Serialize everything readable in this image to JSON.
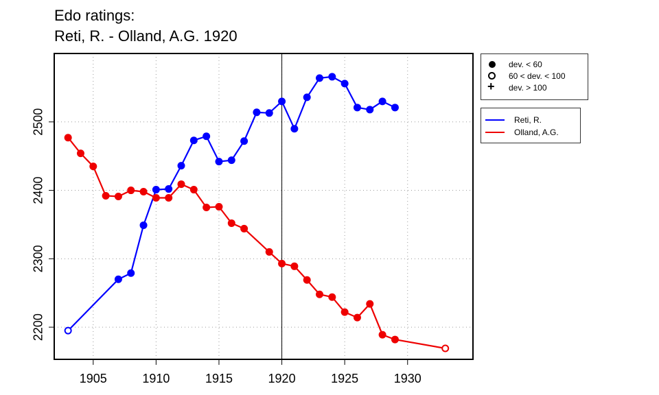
{
  "chart_data": {
    "type": "line",
    "title": "Edo ratings:",
    "subtitle": "Reti, R. - Olland, A.G. 1920",
    "xlabel": "",
    "ylabel": "",
    "xlim": [
      1901.9,
      1935.2
    ],
    "ylim": [
      2153,
      2600
    ],
    "x_ticks": [
      1905,
      1910,
      1915,
      1920,
      1925,
      1930
    ],
    "y_ticks": [
      2200,
      2300,
      2400,
      2500
    ],
    "grid": "dotted",
    "reference_line_x": 1920,
    "marker_legend": [
      {
        "symbol": "solid-circle",
        "label": "dev. < 60"
      },
      {
        "symbol": "open-circle",
        "label": "60 < dev. < 100"
      },
      {
        "symbol": "plus",
        "label": "dev. > 100"
      }
    ],
    "series": [
      {
        "name": "Reti, R.",
        "color": "#0000ff",
        "points": [
          {
            "x": 1903,
            "y": 2195,
            "marker": "open-circle"
          },
          {
            "x": 1907,
            "y": 2270,
            "marker": "solid-circle"
          },
          {
            "x": 1908,
            "y": 2279,
            "marker": "solid-circle"
          },
          {
            "x": 1909,
            "y": 2349,
            "marker": "solid-circle"
          },
          {
            "x": 1910,
            "y": 2401,
            "marker": "solid-circle"
          },
          {
            "x": 1911,
            "y": 2402,
            "marker": "solid-circle"
          },
          {
            "x": 1912,
            "y": 2436,
            "marker": "solid-circle"
          },
          {
            "x": 1913,
            "y": 2473,
            "marker": "solid-circle"
          },
          {
            "x": 1914,
            "y": 2479,
            "marker": "solid-circle"
          },
          {
            "x": 1915,
            "y": 2442,
            "marker": "solid-circle"
          },
          {
            "x": 1916,
            "y": 2444,
            "marker": "solid-circle"
          },
          {
            "x": 1917,
            "y": 2472,
            "marker": "solid-circle"
          },
          {
            "x": 1918,
            "y": 2514,
            "marker": "solid-circle"
          },
          {
            "x": 1919,
            "y": 2513,
            "marker": "solid-circle"
          },
          {
            "x": 1920,
            "y": 2530,
            "marker": "solid-circle"
          },
          {
            "x": 1921,
            "y": 2490,
            "marker": "solid-circle"
          },
          {
            "x": 1922,
            "y": 2536,
            "marker": "solid-circle"
          },
          {
            "x": 1923,
            "y": 2564,
            "marker": "solid-circle"
          },
          {
            "x": 1924,
            "y": 2566,
            "marker": "solid-circle"
          },
          {
            "x": 1925,
            "y": 2556,
            "marker": "solid-circle"
          },
          {
            "x": 1926,
            "y": 2521,
            "marker": "solid-circle"
          },
          {
            "x": 1927,
            "y": 2518,
            "marker": "solid-circle"
          },
          {
            "x": 1928,
            "y": 2530,
            "marker": "solid-circle"
          },
          {
            "x": 1929,
            "y": 2521,
            "marker": "solid-circle"
          }
        ]
      },
      {
        "name": "Olland, A.G.",
        "color": "#ee0000",
        "points": [
          {
            "x": 1903,
            "y": 2477,
            "marker": "solid-circle"
          },
          {
            "x": 1904,
            "y": 2454,
            "marker": "solid-circle"
          },
          {
            "x": 1905,
            "y": 2435,
            "marker": "solid-circle"
          },
          {
            "x": 1906,
            "y": 2392,
            "marker": "solid-circle"
          },
          {
            "x": 1907,
            "y": 2391,
            "marker": "solid-circle"
          },
          {
            "x": 1908,
            "y": 2400,
            "marker": "solid-circle"
          },
          {
            "x": 1909,
            "y": 2398,
            "marker": "solid-circle"
          },
          {
            "x": 1910,
            "y": 2389,
            "marker": "solid-circle"
          },
          {
            "x": 1911,
            "y": 2389,
            "marker": "solid-circle"
          },
          {
            "x": 1912,
            "y": 2409,
            "marker": "solid-circle"
          },
          {
            "x": 1913,
            "y": 2401,
            "marker": "solid-circle"
          },
          {
            "x": 1914,
            "y": 2375,
            "marker": "solid-circle"
          },
          {
            "x": 1915,
            "y": 2376,
            "marker": "solid-circle"
          },
          {
            "x": 1916,
            "y": 2352,
            "marker": "solid-circle"
          },
          {
            "x": 1917,
            "y": 2344,
            "marker": "solid-circle"
          },
          {
            "x": 1919,
            "y": 2310,
            "marker": "solid-circle"
          },
          {
            "x": 1920,
            "y": 2293,
            "marker": "solid-circle"
          },
          {
            "x": 1921,
            "y": 2289,
            "marker": "solid-circle"
          },
          {
            "x": 1922,
            "y": 2269,
            "marker": "solid-circle"
          },
          {
            "x": 1923,
            "y": 2248,
            "marker": "solid-circle"
          },
          {
            "x": 1924,
            "y": 2244,
            "marker": "solid-circle"
          },
          {
            "x": 1925,
            "y": 2222,
            "marker": "solid-circle"
          },
          {
            "x": 1926,
            "y": 2214,
            "marker": "solid-circle"
          },
          {
            "x": 1927,
            "y": 2234,
            "marker": "solid-circle"
          },
          {
            "x": 1928,
            "y": 2189,
            "marker": "solid-circle"
          },
          {
            "x": 1929,
            "y": 2182,
            "marker": "solid-circle"
          },
          {
            "x": 1933,
            "y": 2169,
            "marker": "open-circle"
          }
        ]
      }
    ]
  }
}
